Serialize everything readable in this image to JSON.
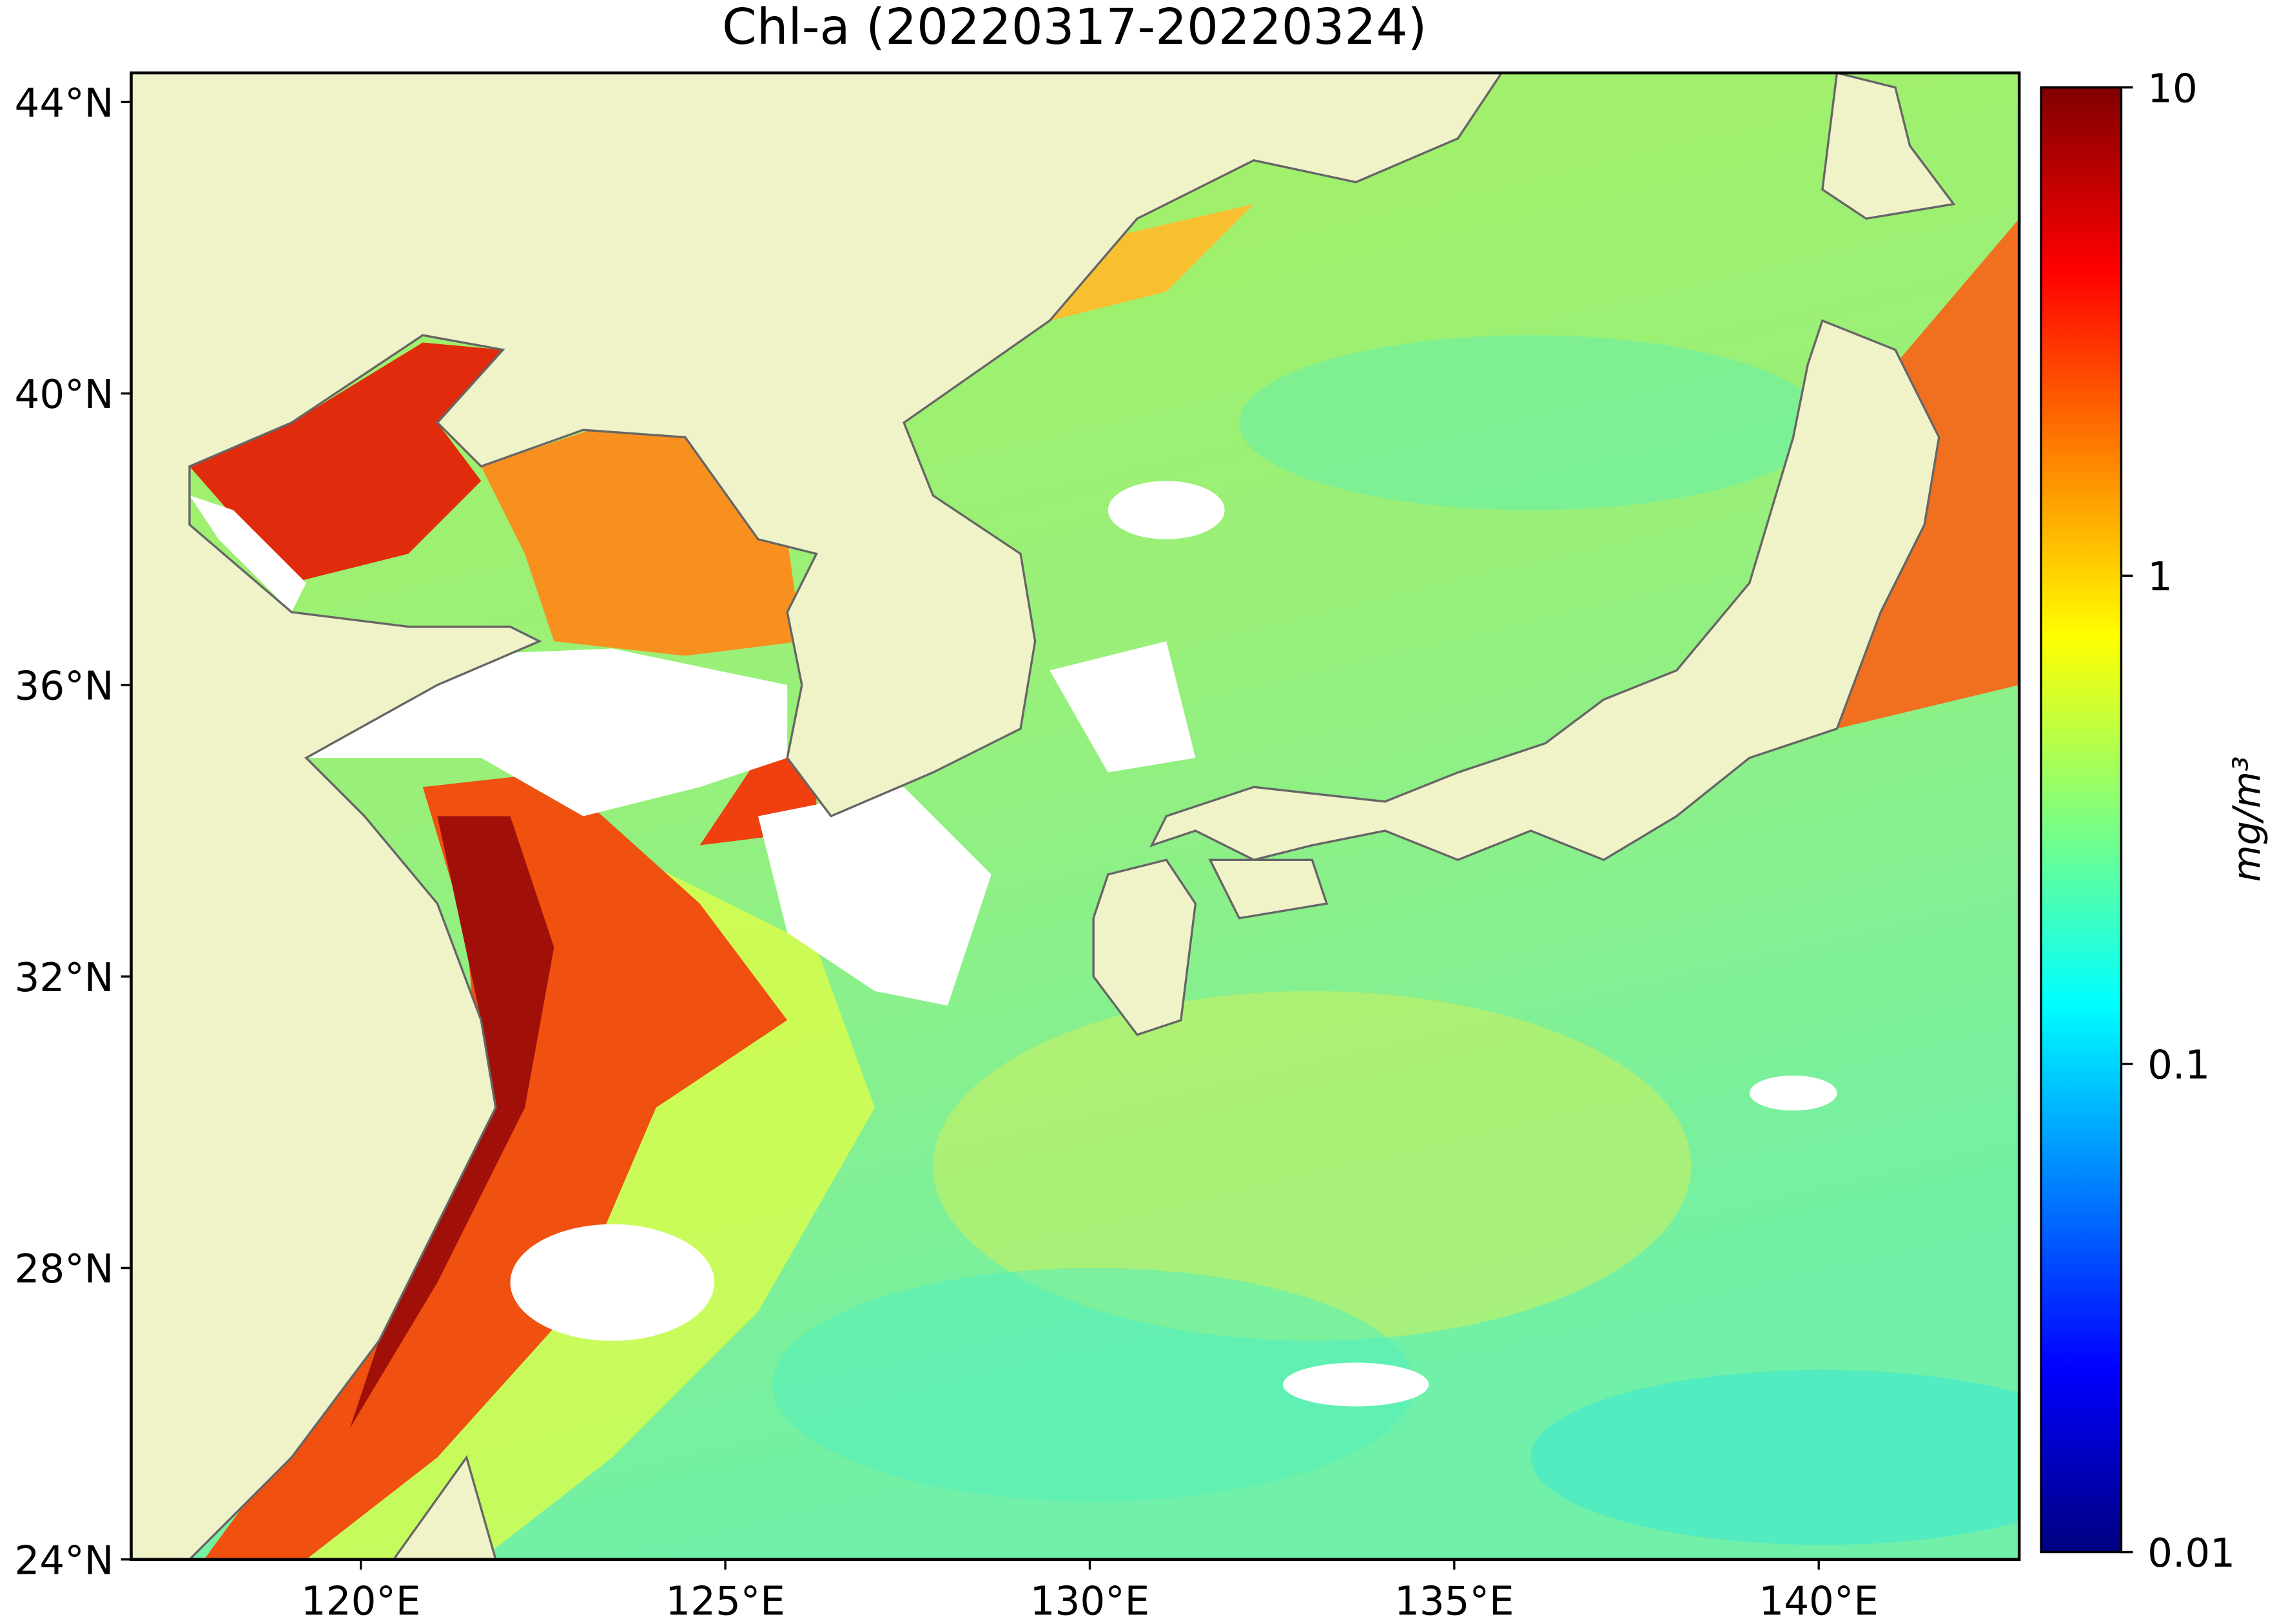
{
  "chart_data": {
    "type": "map",
    "title": "Chl-a (20220317-20220324)",
    "xlim": [
      116.85,
      142.75
    ],
    "ylim": [
      24,
      44.4
    ],
    "xticks": [
      {
        "value": 120,
        "label": "120°E"
      },
      {
        "value": 125,
        "label": "125°E"
      },
      {
        "value": 130,
        "label": "130°E"
      },
      {
        "value": 135,
        "label": "135°E"
      },
      {
        "value": 140,
        "label": "140°E"
      }
    ],
    "yticks": [
      {
        "value": 24,
        "label": "24°N"
      },
      {
        "value": 28,
        "label": "28°N"
      },
      {
        "value": 32,
        "label": "32°N"
      },
      {
        "value": 36,
        "label": "36°N"
      },
      {
        "value": 40,
        "label": "40°N"
      },
      {
        "value": 44,
        "label": "44°N"
      }
    ],
    "colorbar": {
      "label": "mg/m³",
      "log_scale": true,
      "lim": [
        0.01,
        10
      ],
      "ticks": [
        0.01,
        0.1,
        1,
        10
      ],
      "colors": [
        "#00007f",
        "#0000ff",
        "#0080ff",
        "#00ffff",
        "#7fff7f",
        "#ffff00",
        "#ff8000",
        "#ff0000",
        "#7f0000"
      ]
    }
  }
}
